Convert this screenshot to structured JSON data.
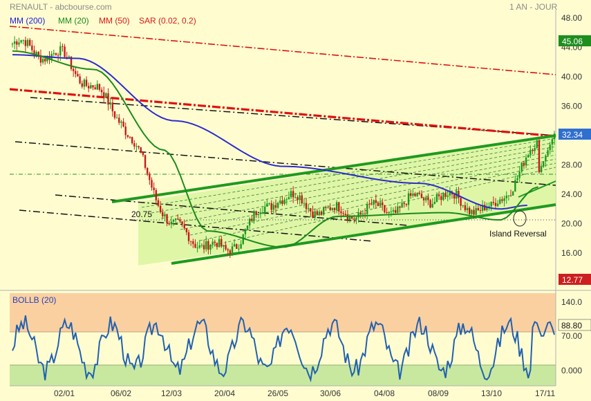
{
  "header": {
    "title": "RENAULT - abcbourse.com",
    "period": "1 AN - JOUR"
  },
  "legend": [
    {
      "label": "MM (200)",
      "color": "#1a1adf"
    },
    {
      "label": "MM (20)",
      "color": "#1a8a1a"
    },
    {
      "label": "MM (50)",
      "color": "#d81818"
    },
    {
      "label": "SAR (0.02, 0.2)",
      "color": "#d81818"
    }
  ],
  "price_badges": {
    "high": "45.06",
    "last": "32.34",
    "low": "12.77"
  },
  "annotations": {
    "level": "20.75",
    "pattern": "Island Reversal"
  },
  "indicator": {
    "title": "BOLLB (20)",
    "last": "88.80",
    "ticks": [
      "140.0",
      "70.00",
      "0.000"
    ]
  },
  "colors": {
    "background": "#fffdd0",
    "candle_up": "#1a9a1a",
    "candle_down": "#c81818",
    "channel": "#1f9a1f",
    "channel_fill": "#d9f5a0",
    "ma200": "#2b2bcc",
    "ma20": "#1a8a1a",
    "resistance": "#e01010",
    "bollb_line": "#2060b0",
    "bollb_upper_zone": "#fbd0a0",
    "bollb_lower_zone": "#c8e8a0",
    "badge_high": "#1e8e1e",
    "badge_last": "#2f6fd0",
    "badge_low": "#cc1f1f"
  },
  "chart_data": [
    {
      "type": "candlestick",
      "title": "RENAULT",
      "y_ticks": [
        "48.00",
        "44.00",
        "40.00",
        "36.00",
        "32.00",
        "28.00",
        "24.00",
        "20.00",
        "16.00"
      ],
      "ylim": [
        12,
        48
      ],
      "x_ticks": [
        "02/01",
        "06/02",
        "12/03",
        "20/04",
        "26/05",
        "30/06",
        "04/08",
        "08/09",
        "13/10",
        "17/11"
      ],
      "anchors_date_close": [
        [
          "start",
          44.5
        ],
        [
          "02/01",
          42.5
        ],
        [
          "06/02",
          34.5
        ],
        [
          "12/03",
          19.5
        ],
        [
          "20/04",
          16.0
        ],
        [
          "26/05",
          24.0
        ],
        [
          "30/06",
          21.5
        ],
        [
          "04/08",
          21.8
        ],
        [
          "08/09",
          24.0
        ],
        [
          "13/10",
          21.5
        ],
        [
          "17/11",
          32.3
        ]
      ],
      "series": [
        {
          "name": "MM (200)",
          "points": [
            [
              0,
              43.0
            ],
            [
              0.12,
              42.5
            ],
            [
              0.3,
              34.0
            ],
            [
              0.5,
              27.8
            ],
            [
              0.75,
              25.5
            ],
            [
              0.9,
              22.0
            ],
            [
              0.95,
              22.5
            ]
          ]
        },
        {
          "name": "MM (20)",
          "points": [
            [
              0,
              43.5
            ],
            [
              0.15,
              41.0
            ],
            [
              0.28,
              30.0
            ],
            [
              0.36,
              19.0
            ],
            [
              0.5,
              16.8
            ],
            [
              0.6,
              21.0
            ],
            [
              0.8,
              21.5
            ],
            [
              0.9,
              20.5
            ],
            [
              0.97,
              25.0
            ]
          ]
        }
      ],
      "last_close": 32.34
    },
    {
      "type": "line",
      "title": "BOLLB (20)",
      "ylim": [
        -20,
        160
      ],
      "zones": [
        [
          70,
          160
        ],
        [
          -20,
          10
        ]
      ],
      "last": 88.8
    }
  ]
}
